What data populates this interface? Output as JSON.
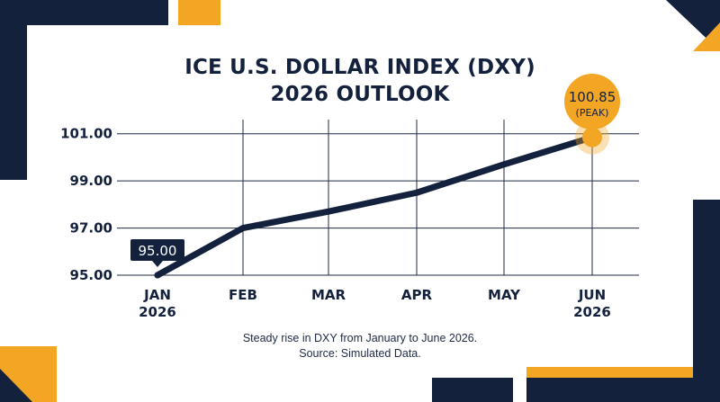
{
  "chart_data": {
    "type": "line",
    "title_line1": "ICE U.S. DOLLAR INDEX (DXY)",
    "title_line2": "2026 OUTLOOK",
    "categories": [
      {
        "month": "JAN",
        "year": "2026"
      },
      {
        "month": "FEB",
        "year": ""
      },
      {
        "month": "MAR",
        "year": ""
      },
      {
        "month": "APR",
        "year": ""
      },
      {
        "month": "MAY",
        "year": ""
      },
      {
        "month": "JUN",
        "year": "2026"
      }
    ],
    "values": [
      95.0,
      97.0,
      97.7,
      98.5,
      99.7,
      100.85
    ],
    "yticks": [
      "95.00",
      "97.00",
      "99.00",
      "101.00"
    ],
    "ytick_values": [
      95,
      97,
      99,
      101
    ],
    "ylim": [
      95,
      101.6
    ],
    "grid": true,
    "start_label": "95.00",
    "peak_value_label": "100.85",
    "peak_note_label": "(PEAK)",
    "caption_line1": "Steady rise in DXY from January to June 2026.",
    "caption_line2": "Source: Simulated Data.",
    "colors": {
      "line": "#14213d",
      "accent": "#f2a623",
      "navy": "#14213d",
      "grid": "#1f2a44"
    }
  }
}
